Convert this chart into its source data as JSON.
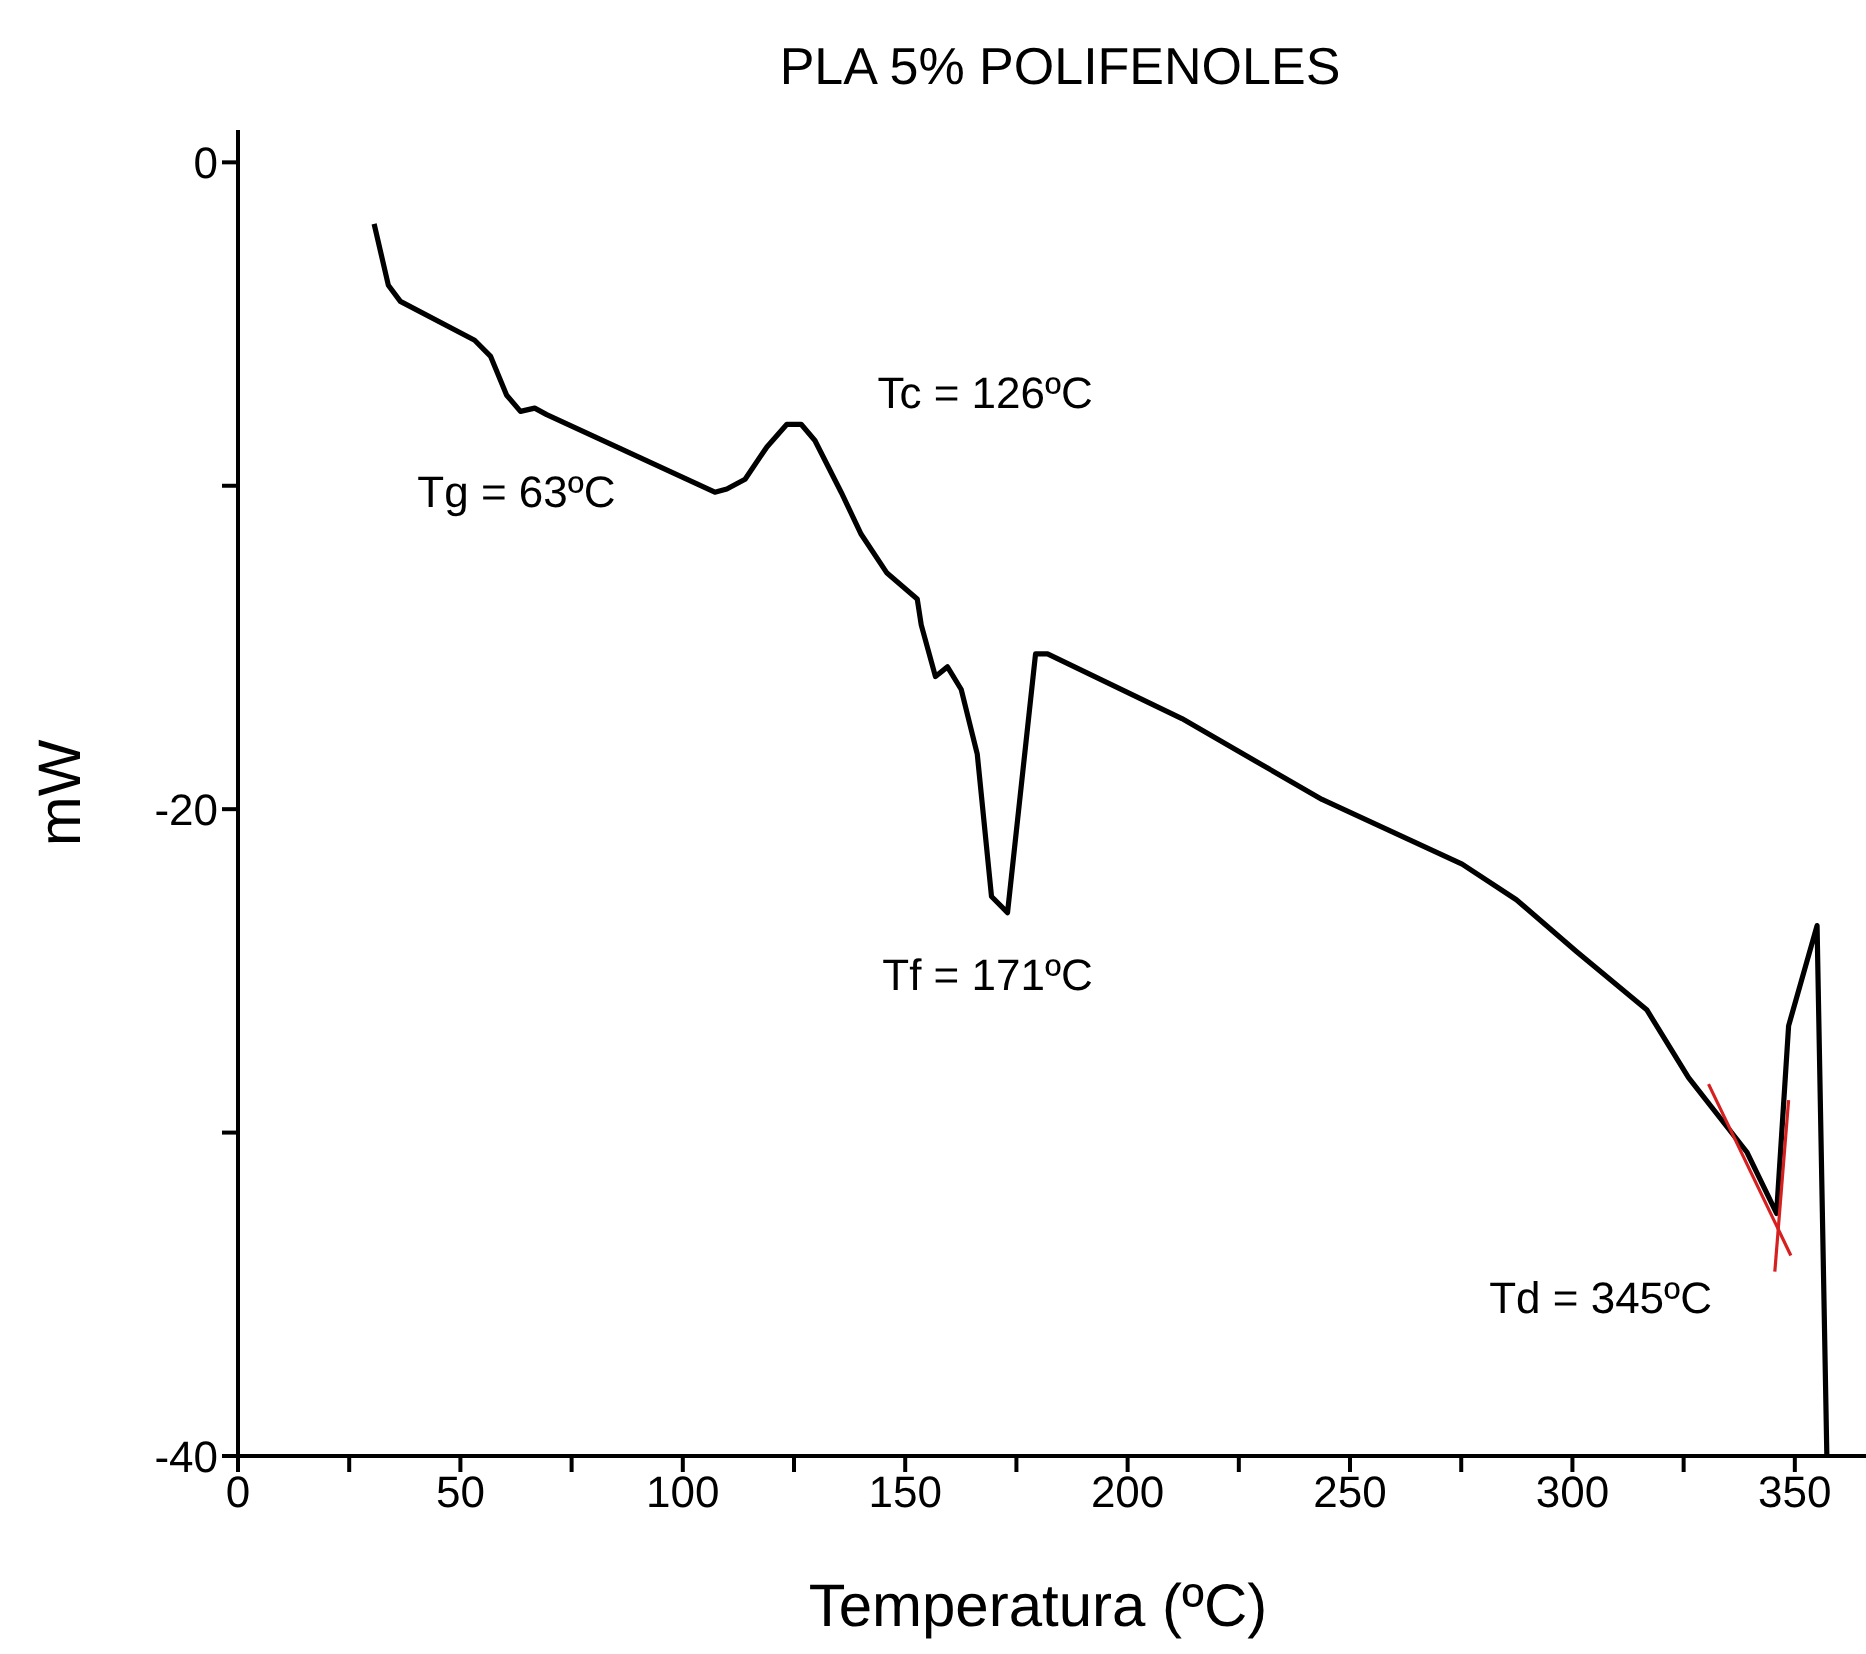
{
  "chart_data": {
    "type": "line",
    "title": "PLA 5% POLIFENOLES",
    "xlabel": "Temperatura (ºC)",
    "ylabel": "mW",
    "annotations": [
      {
        "text": "Tg = 63ºC",
        "x": 63.5,
        "y": -7.7
      },
      {
        "text": "Tc = 126ºC",
        "x": 126.6,
        "y": -8.1
      },
      {
        "text": "Tf = 171ºC",
        "x": 173,
        "y": -23.2
      },
      {
        "text": "Td = 345ºC",
        "x": 345.9,
        "y": -32.5
      }
    ],
    "series": [
      {
        "color": "#000000",
        "x": [
          30.6,
          33.8,
          36.5,
          53.2,
          56.8,
          60.4,
          63.5,
          66.7,
          69.4,
          107.2,
          109.9,
          114,
          118.9,
          123.4,
          126.6,
          129.7,
          135.6,
          140.1,
          145.9,
          152.7,
          153.6,
          156.8,
          159.5,
          162.6,
          166.2,
          169.4,
          173,
          179.3,
          182,
          212.2,
          243.7,
          275.2,
          287.4,
          300.9,
          316.7,
          326.1,
          339.2,
          345.9,
          348.6,
          355,
          357.2
        ],
        "values": [
          -1.9,
          -3.8,
          -4.3,
          -5.5,
          -6,
          -7.2,
          -7.7,
          -7.6,
          -7.8,
          -10.2,
          -10.1,
          -9.8,
          -8.8,
          -8.1,
          -8.1,
          -8.6,
          -10.2,
          -11.5,
          -12.7,
          -13.5,
          -14.3,
          -15.9,
          -15.6,
          -16.3,
          -18.3,
          -22.7,
          -23.2,
          -15.2,
          -15.2,
          -17.2,
          -19.7,
          -21.7,
          -22.8,
          -24.4,
          -26.2,
          -28.3,
          -30.6,
          -32.5,
          -26.7,
          -23.6,
          -40
        ]
      },
      {
        "type": "line",
        "color": "#d62020",
        "x": [
          330.6,
          349.1
        ],
        "values": [
          -28.5,
          -33.8
        ]
      },
      {
        "type": "line",
        "color": "#d62020",
        "x": [
          345.5,
          348.6
        ],
        "values": [
          -34.3,
          -29
        ]
      }
    ],
    "xlim": [
      0,
      366
    ],
    "ylim": [
      -40,
      1
    ],
    "xticks": [
      0,
      {
        "value": 25,
        "label": null
      },
      50,
      {
        "value": 75,
        "label": null
      },
      100,
      {
        "value": 125,
        "label": null
      },
      150,
      {
        "value": 175,
        "label": null
      },
      200,
      {
        "value": 225,
        "label": null
      },
      250,
      {
        "value": 275,
        "label": null
      },
      300,
      {
        "value": 325,
        "label": null
      },
      350
    ],
    "yticks": [
      0,
      {
        "value": -10,
        "label": null
      },
      -20,
      {
        "value": -30,
        "label": null
      },
      -40
    ],
    "line_style": "solid",
    "marker": "none"
  }
}
